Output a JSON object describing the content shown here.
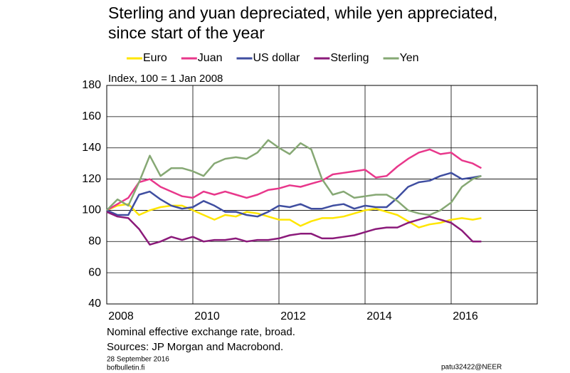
{
  "chart_data": {
    "type": "line",
    "title": [
      "Sterling and yuan depreciated, while yen appreciated,",
      "since start of the year"
    ],
    "subtitle": "Index, 100 = 1 Jan 2008",
    "notes": [
      "Nominal effective exchange rate, broad.",
      "Sources: JP Morgan and Macrobond."
    ],
    "date": "28 September 2016",
    "site": "bofbulletin.fi",
    "code": "patu32422@NEER",
    "x": [
      2008.0,
      2008.25,
      2008.5,
      2008.75,
      2009.0,
      2009.25,
      2009.5,
      2009.75,
      2010.0,
      2010.25,
      2010.5,
      2010.75,
      2011.0,
      2011.25,
      2011.5,
      2011.75,
      2012.0,
      2012.25,
      2012.5,
      2012.75,
      2013.0,
      2013.25,
      2013.5,
      2013.75,
      2014.0,
      2014.25,
      2014.5,
      2014.75,
      2015.0,
      2015.25,
      2015.5,
      2015.75,
      2016.0,
      2016.25,
      2016.5,
      2016.7
    ],
    "series": [
      {
        "name": "Euro",
        "color": "#ffe600",
        "values": [
          100,
          103,
          104,
          97,
          100,
          102,
          103,
          103,
          100,
          97,
          94,
          97,
          96,
          99,
          98,
          96,
          94,
          94,
          90,
          93,
          95,
          95,
          96,
          98,
          100,
          101,
          99,
          97,
          93,
          89,
          91,
          92,
          94,
          95,
          94,
          95
        ]
      },
      {
        "name": "Juan",
        "color": "#e8378b",
        "values": [
          100,
          104,
          108,
          118,
          120,
          115,
          112,
          109,
          108,
          112,
          110,
          112,
          110,
          108,
          110,
          113,
          114,
          116,
          115,
          117,
          119,
          123,
          124,
          125,
          126,
          121,
          122,
          128,
          133,
          137,
          139,
          136,
          137,
          132,
          130,
          127
        ]
      },
      {
        "name": "US dollar",
        "color": "#3f4ea0",
        "values": [
          100,
          97,
          97,
          110,
          112,
          107,
          103,
          101,
          102,
          106,
          103,
          99,
          99,
          97,
          96,
          99,
          103,
          102,
          104,
          101,
          101,
          103,
          104,
          101,
          103,
          102,
          102,
          108,
          115,
          118,
          119,
          122,
          124,
          120,
          121,
          122
        ]
      },
      {
        "name": "Sterling",
        "color": "#8b1a7a",
        "values": [
          99,
          96,
          95,
          88,
          78,
          80,
          83,
          81,
          83,
          80,
          81,
          81,
          82,
          80,
          81,
          81,
          82,
          84,
          85,
          85,
          82,
          82,
          83,
          84,
          86,
          88,
          89,
          89,
          92,
          94,
          96,
          94,
          92,
          87,
          80,
          80
        ]
      },
      {
        "name": "Yen",
        "color": "#86a874",
        "values": [
          100,
          107,
          103,
          118,
          135,
          122,
          127,
          127,
          125,
          122,
          130,
          133,
          134,
          133,
          137,
          145,
          140,
          136,
          143,
          139,
          120,
          110,
          112,
          108,
          109,
          110,
          110,
          106,
          100,
          98,
          97,
          100,
          105,
          115,
          120,
          122
        ]
      }
    ],
    "xlim": [
      2008,
      2018
    ],
    "xticks": [
      2008,
      2010,
      2012,
      2014,
      2016
    ],
    "ylim": [
      40,
      180
    ],
    "yticks": [
      40,
      60,
      80,
      100,
      120,
      140,
      160,
      180
    ],
    "grid": true
  }
}
